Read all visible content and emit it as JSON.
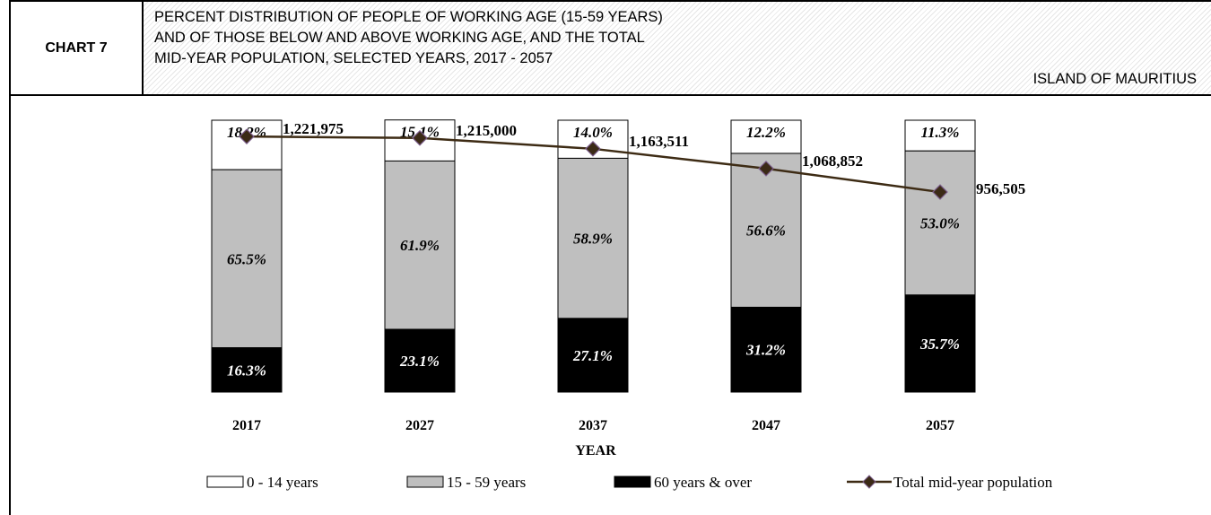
{
  "header": {
    "chart_id": "CHART 7",
    "title_lines": [
      "PERCENT DISTRIBUTION OF PEOPLE OF WORKING AGE (15-59 YEARS)",
      "AND OF THOSE BELOW AND ABOVE WORKING AGE, AND THE TOTAL",
      "MID-YEAR POPULATION, SELECTED YEARS, 2017 - 2057"
    ],
    "region": "ISLAND OF MAURITIUS"
  },
  "colors": {
    "age_0_14": "#ffffff",
    "age_15_59": "#bfbfbf",
    "age_60_over": "#000000",
    "line": "#3d2b14",
    "marker": "#3b2a16",
    "marker_edge": "#7a5c8a"
  },
  "chart_data": {
    "type": "bar",
    "stacked": true,
    "categories": [
      "2017",
      "2027",
      "2037",
      "2047",
      "2057"
    ],
    "xlabel": "YEAR",
    "ylim": [
      0,
      100
    ],
    "series": [
      {
        "name": "0  -  14 years",
        "values": [
          18.2,
          15.1,
          14.0,
          12.2,
          11.3
        ],
        "labels": [
          "18.2%",
          "15.1%",
          "14.0%",
          "12.2%",
          "11.3%"
        ]
      },
      {
        "name": "15  -  59 years",
        "values": [
          65.5,
          61.9,
          58.9,
          56.6,
          53.0
        ],
        "labels": [
          "65.5%",
          "61.9%",
          "58.9%",
          "56.6%",
          "53.0%"
        ]
      },
      {
        "name": "60 years  &  over",
        "values": [
          16.3,
          23.1,
          27.1,
          31.2,
          35.7
        ],
        "labels": [
          "16.3%",
          "23.1%",
          "27.1%",
          "31.2%",
          "35.7%"
        ]
      }
    ],
    "line_series": {
      "name": "Total mid-year population",
      "values": [
        1221975,
        1215000,
        1163511,
        1068852,
        956505
      ],
      "labels": [
        "1,221,975",
        "1,215,000",
        "1,163,511",
        "1,068,852",
        "956,505"
      ]
    },
    "legend_position": "bottom"
  }
}
